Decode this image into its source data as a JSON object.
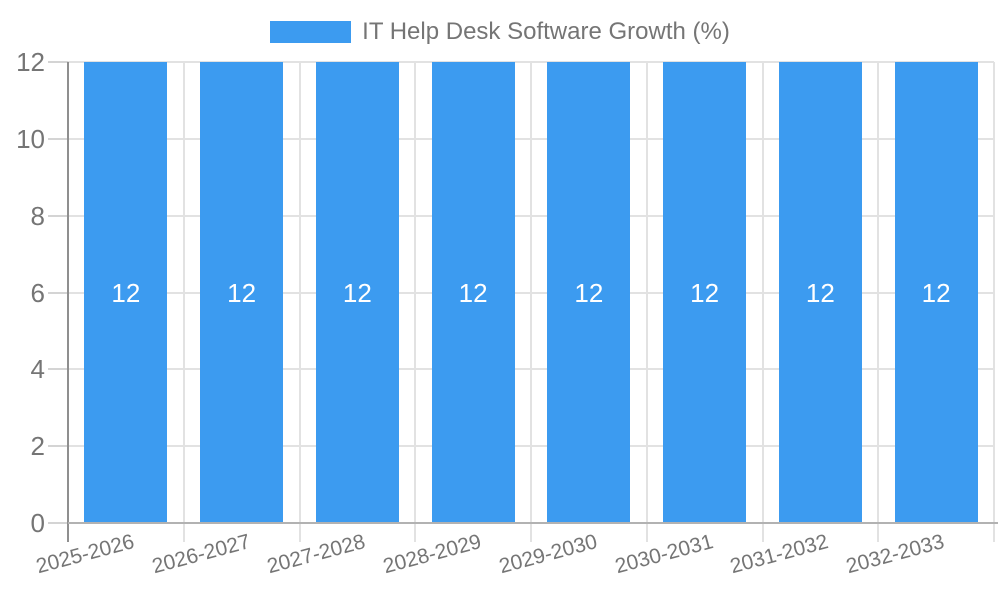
{
  "legend": {
    "label": "IT Help Desk Software Growth (%)"
  },
  "colors": {
    "bar": "#3c9bf0",
    "axis_text": "#757575",
    "grid_line": "#e2e2e2",
    "tick_line": "#d4d4d4",
    "y_axis_line": "#8f8f8f",
    "x_axis_line": "#b2b2b2",
    "bar_value_text": "#ffffff",
    "background": "#ffffff"
  },
  "chart_data": {
    "type": "bar",
    "title": "IT Help Desk Software Growth (%)",
    "categories": [
      "2025-2026",
      "2026-2027",
      "2027-2028",
      "2028-2029",
      "2029-2030",
      "2030-2031",
      "2031-2032",
      "2032-2033"
    ],
    "series": [
      {
        "name": "IT Help Desk Software Growth (%)",
        "values": [
          12,
          12,
          12,
          12,
          12,
          12,
          12,
          12
        ]
      }
    ],
    "values": [
      12,
      12,
      12,
      12,
      12,
      12,
      12,
      12
    ],
    "value_labels": [
      "12",
      "12",
      "12",
      "12",
      "12",
      "12",
      "12",
      "12"
    ],
    "xlabel": "",
    "ylabel": "",
    "ylim": [
      0,
      12
    ],
    "yticks": [
      0,
      2,
      4,
      6,
      8,
      10,
      12
    ],
    "grid": true,
    "legend_position": "top",
    "value_label_position": "middle",
    "x_tick_rotation_deg": -15
  }
}
